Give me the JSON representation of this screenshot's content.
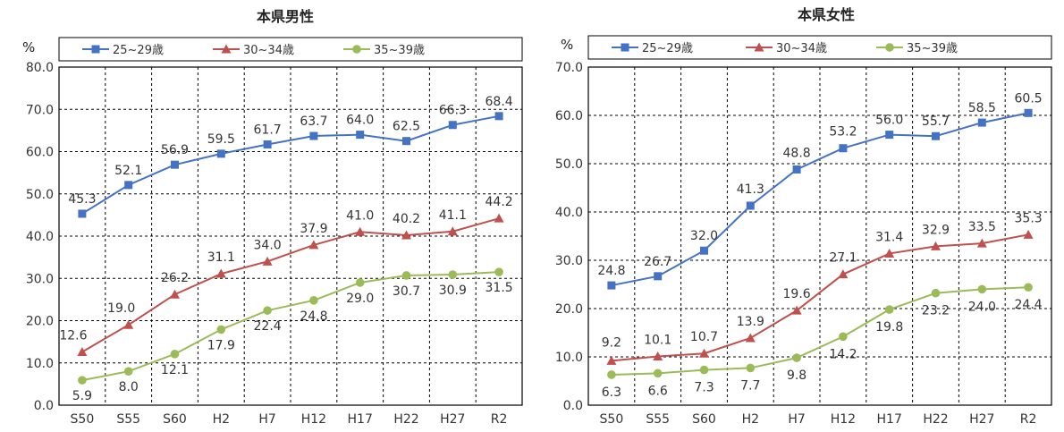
{
  "chart_data": [
    {
      "type": "line",
      "title": "本県男性",
      "ylabel": "%",
      "categories": [
        "S50",
        "S55",
        "S60",
        "H2",
        "H7",
        "H12",
        "H17",
        "H22",
        "H27",
        "R2"
      ],
      "ylim": [
        0,
        80
      ],
      "yticks": [
        "0.0",
        "10.0",
        "20.0",
        "30.0",
        "40.0",
        "50.0",
        "60.0",
        "70.0",
        "80.0"
      ],
      "grid": true,
      "legend": "top",
      "series": [
        {
          "name": "25~29歳",
          "color": "#4472c4",
          "marker": "square",
          "values": [
            45.3,
            52.1,
            56.9,
            59.5,
            61.7,
            63.7,
            64.0,
            62.5,
            66.3,
            68.4
          ],
          "labels": [
            "45.3",
            "52.1",
            "56.9",
            "59.5",
            "61.7",
            "63.7",
            "64.0",
            "62.5",
            "66.3",
            "68.4"
          ]
        },
        {
          "name": "30~34歳",
          "color": "#c0504d",
          "marker": "triangle",
          "values": [
            12.6,
            19.0,
            26.2,
            31.1,
            34.0,
            37.9,
            41.0,
            40.2,
            41.1,
            44.2
          ],
          "labels": [
            "12.6",
            "19.0",
            "26.2",
            "31.1",
            "34.0",
            "37.9",
            "41.0",
            "40.2",
            "41.1",
            "44.2"
          ]
        },
        {
          "name": "35~39歳",
          "color": "#9bbb59",
          "marker": "circle",
          "values": [
            5.9,
            8.0,
            12.1,
            17.9,
            22.4,
            24.8,
            29.0,
            30.7,
            30.9,
            31.5
          ],
          "labels": [
            "5.9",
            "8.0",
            "12.1",
            "17.9",
            "22.4",
            "24.8",
            "29.0",
            "30.7",
            "30.9",
            "31.5"
          ]
        }
      ]
    },
    {
      "type": "line",
      "title": "本県女性",
      "ylabel": "%",
      "categories": [
        "S50",
        "S55",
        "S60",
        "H2",
        "H7",
        "H12",
        "H17",
        "H22",
        "H27",
        "R2"
      ],
      "ylim": [
        0,
        70
      ],
      "yticks": [
        "0.0",
        "10.0",
        "20.0",
        "30.0",
        "40.0",
        "50.0",
        "60.0",
        "70.0"
      ],
      "grid": true,
      "legend": "top",
      "series": [
        {
          "name": "25~29歳",
          "color": "#4472c4",
          "marker": "square",
          "values": [
            24.8,
            26.7,
            32.0,
            41.3,
            48.8,
            53.2,
            56.0,
            55.7,
            58.5,
            60.5
          ],
          "labels": [
            "24.8",
            "26.7",
            "32.0",
            "41.3",
            "48.8",
            "53.2",
            "56.0",
            "55.7",
            "58.5",
            "60.5"
          ]
        },
        {
          "name": "30~34歳",
          "color": "#c0504d",
          "marker": "triangle",
          "values": [
            9.2,
            10.1,
            10.7,
            13.9,
            19.6,
            27.1,
            31.4,
            32.9,
            33.5,
            35.3
          ],
          "labels": [
            "9.2",
            "10.1",
            "10.7",
            "13.9",
            "19.6",
            "27.1",
            "31.4",
            "32.9",
            "33.5",
            "35.3"
          ]
        },
        {
          "name": "35~39歳",
          "color": "#9bbb59",
          "marker": "circle",
          "values": [
            6.3,
            6.6,
            7.3,
            7.7,
            9.8,
            14.2,
            19.8,
            23.2,
            24.0,
            24.4
          ],
          "labels": [
            "6.3",
            "6.6",
            "7.3",
            "7.7",
            "9.8",
            "14.2",
            "19.8",
            "23.2",
            "24.0",
            "24.4"
          ]
        }
      ]
    }
  ]
}
